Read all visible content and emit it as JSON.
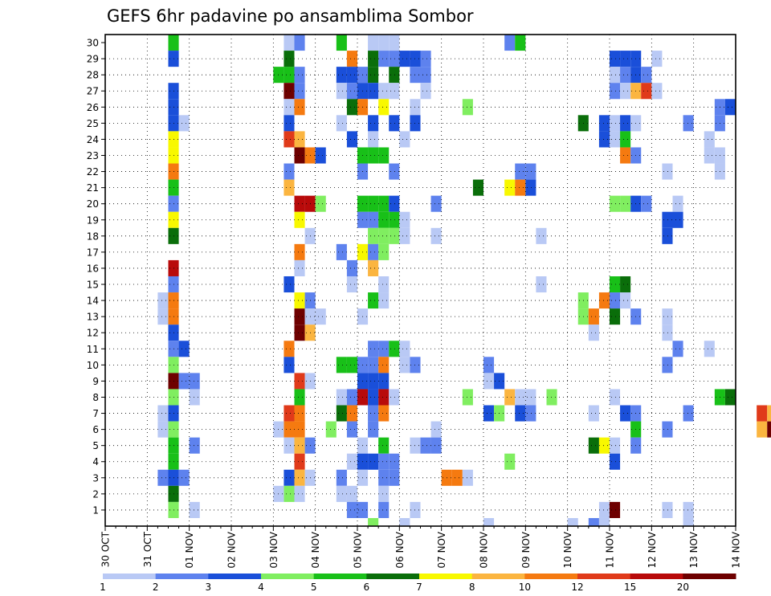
{
  "chart_data": {
    "type": "heatmap",
    "title": "GEFS 6hr padavine po ansamblima Sombor",
    "xlabel": "",
    "ylabel": "",
    "y_ticks": [
      "1",
      "2",
      "3",
      "4",
      "5",
      "6",
      "7",
      "8",
      "9",
      "10",
      "11",
      "12",
      "13",
      "14",
      "15",
      "16",
      "17",
      "18",
      "19",
      "20",
      "21",
      "22",
      "23",
      "24",
      "25",
      "26",
      "27",
      "28",
      "29",
      "30"
    ],
    "x_ticks": [
      "30 OCT",
      "31 OCT",
      "01 NOV",
      "02 NOV",
      "03 NOV",
      "04 NOV",
      "05 NOV",
      "06 NOV",
      "07 NOV",
      "08 NOV",
      "09 NOV",
      "10 NOV",
      "11 NOV",
      "12 NOV",
      "13 NOV",
      "14 NOV"
    ],
    "x_range_steps": [
      0,
      60
    ],
    "y_range": [
      0,
      30
    ],
    "grid": true,
    "colorbar": {
      "labels": [
        "1",
        "2",
        "3",
        "4",
        "5",
        "6",
        "7",
        "8",
        "10",
        "12",
        "15",
        "20"
      ],
      "colors": [
        "#b9c9f5",
        "#5e82ee",
        "#1a4fd9",
        "#80ee60",
        "#18c018",
        "#0a6e0a",
        "#f8f800",
        "#fbb540",
        "#f57a10",
        "#e03a1a",
        "#b80a0a",
        "#6e0000"
      ]
    },
    "cells": [
      [
        6,
        30,
        4
      ],
      [
        6,
        29,
        2
      ],
      [
        6,
        27,
        2
      ],
      [
        6,
        26,
        2
      ],
      [
        6,
        25,
        2
      ],
      [
        6,
        24,
        6
      ],
      [
        6,
        23,
        6
      ],
      [
        6,
        22,
        8
      ],
      [
        6,
        21,
        4
      ],
      [
        6,
        20,
        1
      ],
      [
        6,
        19,
        6
      ],
      [
        6,
        18,
        5
      ],
      [
        6,
        16,
        10
      ],
      [
        6,
        15,
        1
      ],
      [
        6,
        14,
        8
      ],
      [
        6,
        13,
        8
      ],
      [
        6,
        12,
        2
      ],
      [
        6,
        11,
        1
      ],
      [
        6,
        10,
        3
      ],
      [
        6,
        9,
        11
      ],
      [
        6,
        8,
        3
      ],
      [
        6,
        7,
        2
      ],
      [
        6,
        6,
        3
      ],
      [
        6,
        5,
        4
      ],
      [
        6,
        4,
        4
      ],
      [
        6,
        3,
        2
      ],
      [
        6,
        2,
        5
      ],
      [
        6,
        1,
        3
      ],
      [
        5,
        14,
        0
      ],
      [
        5,
        13,
        0
      ],
      [
        5,
        7,
        0
      ],
      [
        5,
        6,
        0
      ],
      [
        5,
        3,
        1
      ],
      [
        7,
        25,
        0
      ],
      [
        7,
        11,
        2
      ],
      [
        7,
        9,
        1
      ],
      [
        7,
        3,
        1
      ],
      [
        8,
        9,
        1
      ],
      [
        8,
        8,
        0
      ],
      [
        8,
        5,
        1
      ],
      [
        8,
        1,
        0
      ],
      [
        17,
        30,
        0
      ],
      [
        17,
        28,
        4
      ],
      [
        17,
        29,
        5
      ],
      [
        17,
        27,
        11
      ],
      [
        17,
        26,
        0
      ],
      [
        17,
        25,
        2
      ],
      [
        17,
        24,
        9
      ],
      [
        17,
        22,
        1
      ],
      [
        17,
        21,
        7
      ],
      [
        17,
        15,
        2
      ],
      [
        17,
        11,
        8
      ],
      [
        17,
        10,
        2
      ],
      [
        17,
        7,
        9
      ],
      [
        17,
        6,
        8
      ],
      [
        17,
        5,
        0
      ],
      [
        17,
        3,
        2
      ],
      [
        17,
        2,
        3
      ],
      [
        16,
        28,
        4
      ],
      [
        16,
        6,
        0
      ],
      [
        16,
        2,
        0
      ],
      [
        18,
        30,
        1
      ],
      [
        18,
        28,
        1
      ],
      [
        18,
        27,
        1
      ],
      [
        18,
        26,
        8
      ],
      [
        18,
        24,
        7
      ],
      [
        18,
        23,
        11
      ],
      [
        18,
        20,
        10
      ],
      [
        18,
        19,
        6
      ],
      [
        18,
        17,
        8
      ],
      [
        18,
        16,
        0
      ],
      [
        18,
        14,
        6
      ],
      [
        18,
        13,
        11
      ],
      [
        18,
        12,
        11
      ],
      [
        18,
        9,
        9
      ],
      [
        18,
        8,
        4
      ],
      [
        18,
        7,
        8
      ],
      [
        18,
        6,
        8
      ],
      [
        18,
        5,
        7
      ],
      [
        18,
        4,
        9
      ],
      [
        18,
        3,
        7
      ],
      [
        18,
        2,
        0
      ],
      [
        19,
        23,
        8
      ],
      [
        19,
        20,
        10
      ],
      [
        19,
        18,
        0
      ],
      [
        19,
        14,
        1
      ],
      [
        19,
        13,
        0
      ],
      [
        19,
        12,
        7
      ],
      [
        19,
        9,
        0
      ],
      [
        19,
        5,
        1
      ],
      [
        19,
        3,
        0
      ],
      [
        20,
        23,
        2
      ],
      [
        20,
        20,
        3
      ],
      [
        20,
        13,
        0
      ],
      [
        21,
        6,
        3
      ],
      [
        22,
        30,
        4
      ],
      [
        22,
        28,
        2
      ],
      [
        22,
        27,
        0
      ],
      [
        22,
        25,
        0
      ],
      [
        22,
        17,
        1
      ],
      [
        22,
        10,
        4
      ],
      [
        22,
        8,
        0
      ],
      [
        22,
        7,
        5
      ],
      [
        22,
        3,
        1
      ],
      [
        22,
        2,
        0
      ],
      [
        23,
        29,
        8
      ],
      [
        23,
        28,
        2
      ],
      [
        23,
        27,
        1
      ],
      [
        23,
        26,
        5
      ],
      [
        23,
        24,
        2
      ],
      [
        23,
        16,
        1
      ],
      [
        23,
        15,
        0
      ],
      [
        23,
        10,
        4
      ],
      [
        23,
        8,
        1
      ],
      [
        23,
        7,
        8
      ],
      [
        23,
        6,
        1
      ],
      [
        23,
        4,
        0
      ],
      [
        23,
        2,
        0
      ],
      [
        23,
        1,
        1
      ],
      [
        24,
        28,
        1
      ],
      [
        24,
        27,
        2
      ],
      [
        24,
        26,
        8
      ],
      [
        24,
        23,
        4
      ],
      [
        24,
        22,
        1
      ],
      [
        24,
        20,
        4
      ],
      [
        24,
        19,
        1
      ],
      [
        24,
        17,
        6
      ],
      [
        24,
        13,
        0
      ],
      [
        24,
        10,
        1
      ],
      [
        24,
        9,
        2
      ],
      [
        24,
        8,
        10
      ],
      [
        24,
        5,
        0
      ],
      [
        24,
        4,
        2
      ],
      [
        24,
        3,
        0
      ],
      [
        24,
        1,
        1
      ],
      [
        25,
        30,
        0
      ],
      [
        25,
        29,
        5
      ],
      [
        25,
        28,
        5
      ],
      [
        25,
        27,
        2
      ],
      [
        25,
        25,
        2
      ],
      [
        25,
        24,
        0
      ],
      [
        25,
        23,
        4
      ],
      [
        25,
        20,
        4
      ],
      [
        25,
        19,
        1
      ],
      [
        25,
        18,
        3
      ],
      [
        25,
        17,
        1
      ],
      [
        25,
        16,
        7
      ],
      [
        25,
        14,
        4
      ],
      [
        25,
        11,
        1
      ],
      [
        25,
        10,
        1
      ],
      [
        25,
        9,
        2
      ],
      [
        25,
        8,
        2
      ],
      [
        25,
        7,
        1
      ],
      [
        25,
        6,
        1
      ],
      [
        25,
        4,
        2
      ],
      [
        25,
        0,
        3
      ],
      [
        26,
        30,
        0
      ],
      [
        26,
        29,
        1
      ],
      [
        26,
        27,
        0
      ],
      [
        26,
        26,
        6
      ],
      [
        26,
        23,
        4
      ],
      [
        26,
        20,
        4
      ],
      [
        26,
        19,
        4
      ],
      [
        26,
        18,
        3
      ],
      [
        26,
        17,
        3
      ],
      [
        26,
        15,
        0
      ],
      [
        26,
        14,
        0
      ],
      [
        26,
        11,
        1
      ],
      [
        26,
        10,
        8
      ],
      [
        26,
        9,
        2
      ],
      [
        26,
        8,
        10
      ],
      [
        26,
        7,
        8
      ],
      [
        26,
        5,
        4
      ],
      [
        26,
        4,
        1
      ],
      [
        26,
        3,
        1
      ],
      [
        26,
        2,
        0
      ],
      [
        26,
        1,
        1
      ],
      [
        27,
        30,
        0
      ],
      [
        27,
        29,
        1
      ],
      [
        27,
        28,
        5
      ],
      [
        27,
        27,
        0
      ],
      [
        27,
        25,
        2
      ],
      [
        27,
        22,
        1
      ],
      [
        27,
        20,
        2
      ],
      [
        27,
        19,
        4
      ],
      [
        27,
        18,
        3
      ],
      [
        27,
        11,
        4
      ],
      [
        27,
        8,
        0
      ],
      [
        27,
        4,
        1
      ],
      [
        27,
        3,
        1
      ],
      [
        28,
        29,
        2
      ],
      [
        28,
        24,
        0
      ],
      [
        28,
        19,
        0
      ],
      [
        28,
        18,
        0
      ],
      [
        28,
        11,
        0
      ],
      [
        28,
        10,
        0
      ],
      [
        28,
        0,
        0
      ],
      [
        29,
        29,
        2
      ],
      [
        29,
        28,
        1
      ],
      [
        29,
        26,
        0
      ],
      [
        29,
        25,
        2
      ],
      [
        29,
        10,
        1
      ],
      [
        29,
        5,
        0
      ],
      [
        29,
        1,
        0
      ],
      [
        30,
        29,
        1
      ],
      [
        30,
        28,
        1
      ],
      [
        30,
        27,
        0
      ],
      [
        30,
        5,
        1
      ],
      [
        31,
        20,
        1
      ],
      [
        31,
        18,
        0
      ],
      [
        31,
        6,
        0
      ],
      [
        31,
        5,
        1
      ],
      [
        32,
        3,
        8
      ],
      [
        33,
        3,
        8
      ],
      [
        34,
        26,
        3
      ],
      [
        34,
        8,
        3
      ],
      [
        34,
        3,
        0
      ],
      [
        35,
        21,
        5
      ],
      [
        36,
        10,
        1
      ],
      [
        36,
        9,
        0
      ],
      [
        36,
        7,
        2
      ],
      [
        36,
        0,
        0
      ],
      [
        37,
        9,
        2
      ],
      [
        37,
        7,
        3
      ],
      [
        38,
        30,
        1
      ],
      [
        38,
        21,
        6
      ],
      [
        38,
        8,
        7
      ],
      [
        38,
        4,
        3
      ],
      [
        39,
        30,
        4
      ],
      [
        39,
        22,
        1
      ],
      [
        39,
        21,
        8
      ],
      [
        39,
        8,
        0
      ],
      [
        39,
        7,
        2
      ],
      [
        40,
        22,
        1
      ],
      [
        40,
        21,
        2
      ],
      [
        40,
        8,
        0
      ],
      [
        40,
        7,
        1
      ],
      [
        41,
        18,
        0
      ],
      [
        41,
        15,
        0
      ],
      [
        42,
        8,
        3
      ],
      [
        44,
        0,
        0
      ],
      [
        45,
        25,
        5
      ],
      [
        45,
        14,
        3
      ],
      [
        45,
        13,
        3
      ],
      [
        46,
        13,
        8
      ],
      [
        46,
        12,
        0
      ],
      [
        46,
        7,
        0
      ],
      [
        46,
        5,
        5
      ],
      [
        46,
        0,
        1
      ],
      [
        47,
        25,
        2
      ],
      [
        47,
        24,
        2
      ],
      [
        47,
        14,
        8
      ],
      [
        47,
        5,
        6
      ],
      [
        47,
        1,
        0
      ],
      [
        47,
        0,
        0
      ],
      [
        48,
        29,
        2
      ],
      [
        48,
        28,
        0
      ],
      [
        48,
        27,
        1
      ],
      [
        48,
        25,
        0
      ],
      [
        48,
        24,
        0
      ],
      [
        48,
        20,
        3
      ],
      [
        48,
        15,
        4
      ],
      [
        48,
        14,
        1
      ],
      [
        48,
        13,
        5
      ],
      [
        48,
        8,
        0
      ],
      [
        48,
        5,
        0
      ],
      [
        48,
        4,
        2
      ],
      [
        48,
        1,
        11
      ],
      [
        49,
        29,
        2
      ],
      [
        49,
        28,
        1
      ],
      [
        49,
        27,
        0
      ],
      [
        49,
        25,
        2
      ],
      [
        49,
        24,
        4
      ],
      [
        49,
        23,
        8
      ],
      [
        49,
        20,
        3
      ],
      [
        49,
        15,
        5
      ],
      [
        49,
        14,
        0
      ],
      [
        49,
        7,
        2
      ],
      [
        50,
        29,
        2
      ],
      [
        50,
        28,
        2
      ],
      [
        50,
        27,
        7
      ],
      [
        50,
        25,
        0
      ],
      [
        50,
        23,
        1
      ],
      [
        50,
        20,
        2
      ],
      [
        50,
        13,
        1
      ],
      [
        50,
        7,
        1
      ],
      [
        50,
        6,
        4
      ],
      [
        50,
        5,
        1
      ],
      [
        51,
        28,
        1
      ],
      [
        51,
        27,
        9
      ],
      [
        51,
        20,
        1
      ],
      [
        52,
        29,
        0
      ],
      [
        52,
        27,
        0
      ],
      [
        53,
        22,
        0
      ],
      [
        53,
        19,
        2
      ],
      [
        53,
        18,
        2
      ],
      [
        53,
        13,
        0
      ],
      [
        53,
        12,
        0
      ],
      [
        53,
        10,
        1
      ],
      [
        53,
        6,
        1
      ],
      [
        53,
        1,
        0
      ],
      [
        54,
        20,
        0
      ],
      [
        54,
        19,
        2
      ],
      [
        54,
        11,
        1
      ],
      [
        55,
        25,
        1
      ],
      [
        55,
        7,
        1
      ],
      [
        55,
        1,
        0
      ],
      [
        55,
        0,
        0
      ],
      [
        57,
        24,
        0
      ],
      [
        57,
        23,
        0
      ],
      [
        57,
        11,
        0
      ],
      [
        58,
        26,
        1
      ],
      [
        58,
        25,
        1
      ],
      [
        58,
        23,
        0
      ],
      [
        58,
        22,
        0
      ],
      [
        58,
        8,
        4
      ],
      [
        59,
        26,
        2
      ],
      [
        59,
        8,
        5
      ],
      [
        62,
        6,
        7
      ],
      [
        62,
        7,
        9
      ],
      [
        63,
        6,
        11
      ],
      [
        63,
        7,
        7
      ],
      [
        64,
        14,
        9
      ],
      [
        64,
        13,
        11
      ],
      [
        65,
        14,
        0
      ],
      [
        65,
        4,
        0
      ],
      [
        65,
        3,
        0
      ],
      [
        65,
        0,
        1
      ],
      [
        65,
        26,
        1
      ],
      [
        65,
        25,
        0
      ],
      [
        66,
        14,
        0
      ],
      [
        66,
        4,
        0
      ],
      [
        66,
        25,
        0
      ],
      [
        66,
        0,
        1
      ],
      [
        67,
        25,
        0
      ],
      [
        67,
        20,
        0
      ],
      [
        67,
        19,
        0
      ],
      [
        68,
        27,
        2
      ],
      [
        68,
        26,
        0
      ],
      [
        68,
        25,
        3
      ],
      [
        68,
        20,
        0
      ],
      [
        68,
        19,
        0
      ],
      [
        68,
        13,
        0
      ],
      [
        69,
        28,
        7
      ],
      [
        69,
        27,
        0
      ],
      [
        69,
        26,
        8
      ],
      [
        69,
        25,
        3
      ],
      [
        69,
        22,
        0
      ],
      [
        69,
        21,
        0
      ],
      [
        69,
        13,
        0
      ],
      [
        69,
        12,
        0
      ],
      [
        69,
        6,
        5
      ]
    ]
  }
}
